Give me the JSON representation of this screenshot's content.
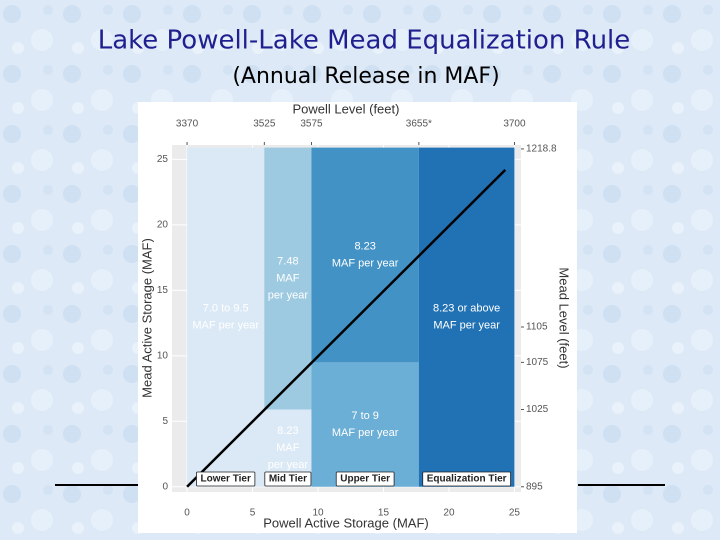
{
  "chart_data": {
    "type": "region",
    "title": "Lake Powell-Lake Mead Equalization Rule",
    "subtitle": "(Annual Release in MAF)",
    "x_label": "Powell Active Storage (MAF)",
    "y_label": "Mead Active Storage (MAF)",
    "x2_label": "Powell Level (feet)",
    "y2_label": "Mead Level (feet)",
    "xlim": [
      -1.15,
      25.5
    ],
    "ylim": [
      -0.4,
      26.1
    ],
    "xticks": [
      0,
      5,
      10,
      15,
      20,
      25
    ],
    "yticks": [
      0,
      5,
      10,
      15,
      20,
      25
    ],
    "grid": true,
    "powell_levels": [
      {
        "elevation": 3370,
        "storage": 0
      },
      {
        "elevation": 3525,
        "storage": 5.9
      },
      {
        "elevation": 3575,
        "storage": 9.5
      },
      {
        "elevation": "3655*",
        "storage": 17.7
      },
      {
        "elevation": 3700,
        "storage": 25
      }
    ],
    "mead_levels": [
      {
        "elevation": 1218.8,
        "storage": 25.8
      },
      {
        "elevation": 1105,
        "storage": 12.2
      },
      {
        "elevation": 1075,
        "storage": 9.5
      },
      {
        "elevation": 1025,
        "storage": 5.9
      },
      {
        "elevation": 895,
        "storage": 0
      }
    ],
    "tiers": [
      {
        "name": "Lower Tier",
        "x": [
          0,
          5.9
        ],
        "zones": [
          {
            "y": [
              0,
              25.9
            ],
            "color": "#dbe9f6",
            "lines": [
              "7.0 to 9.5",
              "MAF per year"
            ]
          }
        ]
      },
      {
        "name": "Mid Tier",
        "x": [
          5.9,
          9.5
        ],
        "zones": [
          {
            "y": [
              0,
              5.9
            ],
            "color": "#dbe9f6",
            "lines": [
              "8.23",
              "MAF",
              "per year"
            ]
          },
          {
            "y": [
              5.9,
              25.9
            ],
            "color": "#9ecae1",
            "lines": [
              "7.48",
              "MAF",
              "per year"
            ]
          }
        ]
      },
      {
        "name": "Upper Tier",
        "x": [
          9.5,
          17.7
        ],
        "zones": [
          {
            "y": [
              0,
              9.5
            ],
            "color": "#6baed6",
            "lines": [
              "7 to 9",
              "MAF per year"
            ]
          },
          {
            "y": [
              9.5,
              25.9
            ],
            "color": "#4292c6",
            "lines": [
              "8.23",
              "MAF per year"
            ]
          }
        ]
      },
      {
        "name": "Equalization Tier",
        "x": [
          17.7,
          25
        ],
        "zones": [
          {
            "y": [
              0,
              25.9
            ],
            "color": "#2171b5",
            "lines": [
              "8.23 or above",
              "MAF per year"
            ]
          }
        ]
      }
    ],
    "line": {
      "x": [
        0,
        24.3
      ],
      "y": [
        0,
        24.2
      ],
      "color": "#000000"
    }
  }
}
